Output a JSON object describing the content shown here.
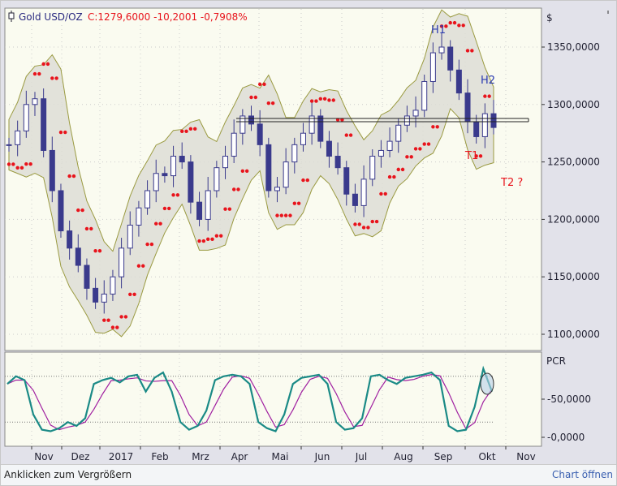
{
  "header": {
    "instrument": "Gold USD/OZ",
    "quote": "C:1279,6000 -10,2001 -0,7908%",
    "currency": "$"
  },
  "price_axis": {
    "labels": [
      "1350,0000",
      "1300,0000",
      "1250,0000",
      "1200,0000",
      "1150,0000",
      "1100,0000"
    ],
    "values": [
      1350,
      1300,
      1250,
      1200,
      1150,
      1100
    ],
    "min": 1083,
    "max": 1383
  },
  "indicator": {
    "name": "PCR",
    "labels": [
      "50,0000",
      "0,0000"
    ],
    "values": [
      50,
      0
    ],
    "upper_level": 80,
    "lower_level": 20
  },
  "x_axis": {
    "months": [
      "Nov",
      "Dez",
      "2017",
      "Feb",
      "Mrz",
      "Apr",
      "Mai",
      "Jun",
      "Jul",
      "Aug",
      "Sep",
      "Okt",
      "Nov"
    ]
  },
  "annotations": {
    "h1": "H1",
    "h2": "H2",
    "t1": "T1",
    "t2": "T2 ?"
  },
  "colors": {
    "candle": "#3a3a8c",
    "sar": "#e8141c",
    "band_fill": "#dcdcd4",
    "band_line": "#9a9a40",
    "pcr": "#1a8a86",
    "pcr_signal": "#a020a0",
    "annot_blue": "#2a3ab0",
    "annot_red": "#e8141c"
  },
  "chart_data": {
    "type": "candlestick",
    "closes": [
      1265,
      1277,
      1300,
      1305,
      1260,
      1225,
      1190,
      1175,
      1160,
      1140,
      1128,
      1135,
      1150,
      1175,
      1195,
      1210,
      1225,
      1240,
      1238,
      1255,
      1250,
      1215,
      1200,
      1225,
      1245,
      1255,
      1275,
      1290,
      1283,
      1265,
      1225,
      1228,
      1250,
      1265,
      1275,
      1290,
      1268,
      1255,
      1245,
      1222,
      1212,
      1235,
      1255,
      1260,
      1268,
      1282,
      1290,
      1295,
      1320,
      1345,
      1350,
      1330,
      1310,
      1285,
      1272,
      1292,
      1280
    ],
    "pcr": [
      70,
      80,
      75,
      30,
      10,
      8,
      12,
      20,
      15,
      25,
      70,
      75,
      78,
      72,
      80,
      82,
      60,
      78,
      85,
      60,
      20,
      10,
      15,
      35,
      75,
      80,
      82,
      80,
      70,
      20,
      12,
      8,
      30,
      70,
      78,
      80,
      82,
      70,
      20,
      10,
      12,
      25,
      80,
      82,
      75,
      70,
      78,
      80,
      82,
      85,
      75,
      15,
      8,
      10,
      40,
      90,
      60
    ],
    "months": [
      "Nov",
      "Dez",
      "2017",
      "Feb",
      "Mrz",
      "Apr",
      "Mai",
      "Jun",
      "Jul",
      "Aug",
      "Sep",
      "Okt",
      "Nov"
    ]
  },
  "footer": {
    "enlarge": "Anklicken zum Vergrößern",
    "open_chart": "Chart öffnen"
  }
}
